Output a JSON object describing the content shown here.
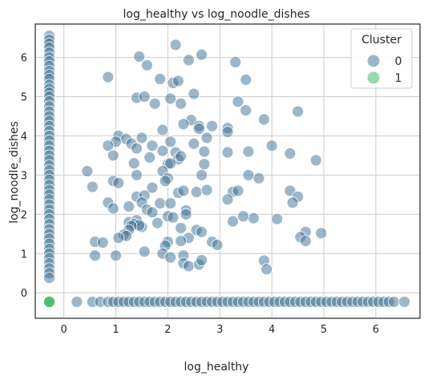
{
  "chart_data": {
    "type": "scatter",
    "title": "log_healthy vs log_noodle_dishes",
    "xlabel": "log_healthy",
    "ylabel": "log_noodle_dishes",
    "xlim": [
      -0.55,
      6.85
    ],
    "ylim": [
      -0.65,
      6.85
    ],
    "xticks": [
      0,
      1,
      2,
      3,
      4,
      5,
      6
    ],
    "yticks": [
      0,
      1,
      2,
      3,
      4,
      5,
      6
    ],
    "grid": true,
    "legend": {
      "title": "Cluster",
      "position": "top-right"
    },
    "series": [
      {
        "name": "0",
        "color": "#3b6f94",
        "points": [
          [
            -0.28,
            6.55
          ],
          [
            -0.28,
            6.45
          ],
          [
            -0.28,
            6.35
          ],
          [
            -0.28,
            6.25
          ],
          [
            -0.28,
            6.12
          ],
          [
            -0.28,
            6.0
          ],
          [
            -0.28,
            5.9
          ],
          [
            -0.28,
            5.78
          ],
          [
            -0.28,
            5.65
          ],
          [
            -0.28,
            5.55
          ],
          [
            -0.28,
            5.45
          ],
          [
            -0.28,
            5.3
          ],
          [
            -0.28,
            5.2
          ],
          [
            -0.28,
            5.1
          ],
          [
            -0.28,
            5.0
          ],
          [
            -0.28,
            4.88
          ],
          [
            -0.28,
            4.75
          ],
          [
            -0.28,
            4.62
          ],
          [
            -0.28,
            4.5
          ],
          [
            -0.28,
            4.38
          ],
          [
            -0.28,
            4.25
          ],
          [
            -0.28,
            4.12
          ],
          [
            -0.28,
            4.0
          ],
          [
            -0.28,
            3.88
          ],
          [
            -0.28,
            3.75
          ],
          [
            -0.28,
            3.62
          ],
          [
            -0.28,
            3.5
          ],
          [
            -0.28,
            3.38
          ],
          [
            -0.28,
            3.25
          ],
          [
            -0.28,
            3.12
          ],
          [
            -0.28,
            3.0
          ],
          [
            -0.28,
            2.88
          ],
          [
            -0.28,
            2.75
          ],
          [
            -0.28,
            2.62
          ],
          [
            -0.28,
            2.5
          ],
          [
            -0.28,
            2.38
          ],
          [
            -0.28,
            2.25
          ],
          [
            -0.28,
            2.12
          ],
          [
            -0.28,
            2.0
          ],
          [
            -0.28,
            1.88
          ],
          [
            -0.28,
            1.75
          ],
          [
            -0.28,
            1.62
          ],
          [
            -0.28,
            1.5
          ],
          [
            -0.28,
            1.38
          ],
          [
            -0.28,
            1.25
          ],
          [
            -0.28,
            1.12
          ],
          [
            -0.28,
            1.0
          ],
          [
            -0.28,
            0.88
          ],
          [
            -0.28,
            0.75
          ],
          [
            -0.28,
            0.62
          ],
          [
            -0.28,
            0.5
          ],
          [
            -0.28,
            0.38
          ],
          [
            0.25,
            -0.23
          ],
          [
            0.55,
            -0.23
          ],
          [
            0.7,
            -0.23
          ],
          [
            0.85,
            -0.23
          ],
          [
            0.95,
            -0.23
          ],
          [
            1.05,
            -0.23
          ],
          [
            1.15,
            -0.23
          ],
          [
            1.25,
            -0.23
          ],
          [
            1.35,
            -0.23
          ],
          [
            1.45,
            -0.23
          ],
          [
            1.55,
            -0.23
          ],
          [
            1.65,
            -0.23
          ],
          [
            1.75,
            -0.23
          ],
          [
            1.85,
            -0.23
          ],
          [
            1.95,
            -0.23
          ],
          [
            2.05,
            -0.23
          ],
          [
            2.15,
            -0.23
          ],
          [
            2.25,
            -0.23
          ],
          [
            2.35,
            -0.23
          ],
          [
            2.45,
            -0.23
          ],
          [
            2.55,
            -0.23
          ],
          [
            2.65,
            -0.23
          ],
          [
            2.75,
            -0.23
          ],
          [
            2.85,
            -0.23
          ],
          [
            2.95,
            -0.23
          ],
          [
            3.05,
            -0.23
          ],
          [
            3.15,
            -0.23
          ],
          [
            3.25,
            -0.23
          ],
          [
            3.35,
            -0.23
          ],
          [
            3.45,
            -0.23
          ],
          [
            3.55,
            -0.23
          ],
          [
            3.65,
            -0.23
          ],
          [
            3.75,
            -0.23
          ],
          [
            3.85,
            -0.23
          ],
          [
            3.95,
            -0.23
          ],
          [
            4.05,
            -0.23
          ],
          [
            4.15,
            -0.23
          ],
          [
            4.25,
            -0.23
          ],
          [
            4.35,
            -0.23
          ],
          [
            4.45,
            -0.23
          ],
          [
            4.55,
            -0.23
          ],
          [
            4.65,
            -0.23
          ],
          [
            4.75,
            -0.23
          ],
          [
            4.85,
            -0.23
          ],
          [
            4.95,
            -0.23
          ],
          [
            5.05,
            -0.23
          ],
          [
            5.15,
            -0.23
          ],
          [
            5.25,
            -0.23
          ],
          [
            5.35,
            -0.23
          ],
          [
            5.45,
            -0.23
          ],
          [
            5.55,
            -0.23
          ],
          [
            5.65,
            -0.23
          ],
          [
            5.75,
            -0.23
          ],
          [
            5.85,
            -0.23
          ],
          [
            5.95,
            -0.23
          ],
          [
            6.05,
            -0.23
          ],
          [
            6.15,
            -0.23
          ],
          [
            6.25,
            -0.23
          ],
          [
            6.35,
            -0.23
          ],
          [
            6.55,
            -0.23
          ],
          [
            2.15,
            6.32
          ],
          [
            1.45,
            6.02
          ],
          [
            2.65,
            6.07
          ],
          [
            1.6,
            5.8
          ],
          [
            2.4,
            5.93
          ],
          [
            3.3,
            5.88
          ],
          [
            0.85,
            5.5
          ],
          [
            1.85,
            5.45
          ],
          [
            2.1,
            5.35
          ],
          [
            2.2,
            5.4
          ],
          [
            3.5,
            5.43
          ],
          [
            1.4,
            4.97
          ],
          [
            1.55,
            5.0
          ],
          [
            1.75,
            4.82
          ],
          [
            2.05,
            4.95
          ],
          [
            2.25,
            4.82
          ],
          [
            2.5,
            5.07
          ],
          [
            3.35,
            4.87
          ],
          [
            3.5,
            4.65
          ],
          [
            4.5,
            4.62
          ],
          [
            2.45,
            4.4
          ],
          [
            2.3,
            4.3
          ],
          [
            3.85,
            4.42
          ],
          [
            2.6,
            4.25
          ],
          [
            2.85,
            4.25
          ],
          [
            3.15,
            4.2
          ],
          [
            1.9,
            4.15
          ],
          [
            2.6,
            4.18
          ],
          [
            1.05,
            4.0
          ],
          [
            1.2,
            3.92
          ],
          [
            1.0,
            3.85
          ],
          [
            1.5,
            3.95
          ],
          [
            0.85,
            3.75
          ],
          [
            1.3,
            3.8
          ],
          [
            1.7,
            3.75
          ],
          [
            2.05,
            3.85
          ],
          [
            2.5,
            3.8
          ],
          [
            2.75,
            3.95
          ],
          [
            3.15,
            4.1
          ],
          [
            4.0,
            3.75
          ],
          [
            1.4,
            3.68
          ],
          [
            1.9,
            3.62
          ],
          [
            2.15,
            3.58
          ],
          [
            2.7,
            3.6
          ],
          [
            3.15,
            3.58
          ],
          [
            3.55,
            3.6
          ],
          [
            4.35,
            3.55
          ],
          [
            0.95,
            3.5
          ],
          [
            1.65,
            3.45
          ],
          [
            2.2,
            3.4
          ],
          [
            2.25,
            3.48
          ],
          [
            1.35,
            3.3
          ],
          [
            2.0,
            3.28
          ],
          [
            2.7,
            3.28
          ],
          [
            4.85,
            3.38
          ],
          [
            2.05,
            3.3
          ],
          [
            0.45,
            3.1
          ],
          [
            1.4,
            3.0
          ],
          [
            1.9,
            3.1
          ],
          [
            2.65,
            3.0
          ],
          [
            3.55,
            3.0
          ],
          [
            3.75,
            2.92
          ],
          [
            2.0,
            2.92
          ],
          [
            1.95,
            2.85
          ],
          [
            0.95,
            2.85
          ],
          [
            1.05,
            2.8
          ],
          [
            1.7,
            2.68
          ],
          [
            2.2,
            2.55
          ],
          [
            2.3,
            2.6
          ],
          [
            2.55,
            2.57
          ],
          [
            2.75,
            2.62
          ],
          [
            0.55,
            2.7
          ],
          [
            3.25,
            2.57
          ],
          [
            3.35,
            2.6
          ],
          [
            4.35,
            2.6
          ],
          [
            4.5,
            2.45
          ],
          [
            4.4,
            2.3
          ],
          [
            3.15,
            2.38
          ],
          [
            1.4,
            2.45
          ],
          [
            1.55,
            2.48
          ],
          [
            0.85,
            2.3
          ],
          [
            0.95,
            2.15
          ],
          [
            1.25,
            2.2
          ],
          [
            1.5,
            2.3
          ],
          [
            1.85,
            2.28
          ],
          [
            2.05,
            2.28
          ],
          [
            1.6,
            2.12
          ],
          [
            1.7,
            2.05
          ],
          [
            2.0,
            1.95
          ],
          [
            2.35,
            2.1
          ],
          [
            2.35,
            2.0
          ],
          [
            2.1,
            1.92
          ],
          [
            3.65,
            1.9
          ],
          [
            3.45,
            1.95
          ],
          [
            4.1,
            1.88
          ],
          [
            3.25,
            1.82
          ],
          [
            1.25,
            1.8
          ],
          [
            1.4,
            1.85
          ],
          [
            1.35,
            1.75
          ],
          [
            1.5,
            1.68
          ],
          [
            1.45,
            1.72
          ],
          [
            1.3,
            1.7
          ],
          [
            1.25,
            1.6
          ],
          [
            1.8,
            1.78
          ],
          [
            2.25,
            1.65
          ],
          [
            2.55,
            1.6
          ],
          [
            2.65,
            1.55
          ],
          [
            4.65,
            1.55
          ],
          [
            4.95,
            1.52
          ],
          [
            1.15,
            1.48
          ],
          [
            1.2,
            1.45
          ],
          [
            1.05,
            1.4
          ],
          [
            2.4,
            1.4
          ],
          [
            2.25,
            1.32
          ],
          [
            2.0,
            1.3
          ],
          [
            1.95,
            1.2
          ],
          [
            2.85,
            1.3
          ],
          [
            2.95,
            1.22
          ],
          [
            4.55,
            1.42
          ],
          [
            4.65,
            1.32
          ],
          [
            0.6,
            1.3
          ],
          [
            0.75,
            1.28
          ],
          [
            1.55,
            1.05
          ],
          [
            1.9,
            1.0
          ],
          [
            2.05,
            0.9
          ],
          [
            2.3,
            0.95
          ],
          [
            0.6,
            0.95
          ],
          [
            1.0,
            0.95
          ],
          [
            2.3,
            0.75
          ],
          [
            2.4,
            0.68
          ],
          [
            2.6,
            0.72
          ],
          [
            2.65,
            0.83
          ],
          [
            3.85,
            0.82
          ],
          [
            3.9,
            0.6
          ]
        ]
      },
      {
        "name": "1",
        "color": "#3fba6e",
        "points": [
          [
            -0.28,
            -0.23
          ]
        ]
      }
    ]
  }
}
